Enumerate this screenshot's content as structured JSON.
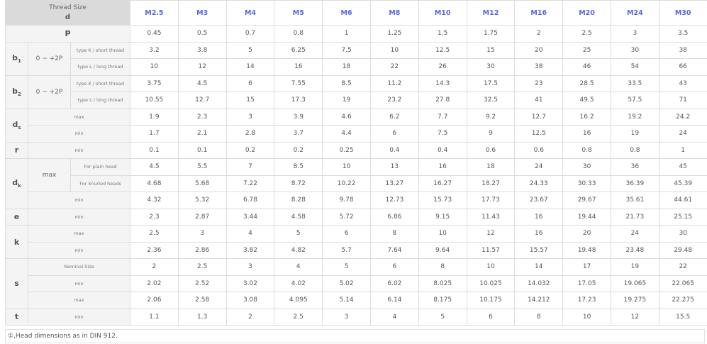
{
  "header": {
    "title": "Thread Size",
    "symbol": "d"
  },
  "sizes": [
    "M2.5",
    "M3",
    "M4",
    "M5",
    "M6",
    "M8",
    "M10",
    "M12",
    "M16",
    "M20",
    "M24",
    "M30"
  ],
  "groups": [
    {
      "symbol": "P",
      "sub": "",
      "full": true,
      "rows": [
        {
          "values": [
            "0.45",
            "0.5",
            "0.7",
            "0.8",
            "1",
            "1.25",
            "1.5",
            "1.75",
            "2",
            "2.5",
            "3",
            "3.5"
          ]
        }
      ]
    },
    {
      "symbol": "b",
      "sub": "1",
      "rows": [
        {
          "qual": "0 ~ +2P",
          "note": "type K / short thread",
          "values": [
            "3.2",
            "3.8",
            "5",
            "6.25",
            "7.5",
            "10",
            "12.5",
            "15",
            "20",
            "25",
            "30",
            "38"
          ]
        },
        {
          "qual": "0 ~ +2P",
          "note": "type L / long thread",
          "values": [
            "10",
            "12",
            "14",
            "16",
            "18",
            "22",
            "26",
            "30",
            "38",
            "46",
            "54",
            "66"
          ]
        }
      ]
    },
    {
      "symbol": "b",
      "sub": "2",
      "rows": [
        {
          "qual": "0 ~ +2P",
          "note": "type K / short thread",
          "values": [
            "3.75",
            "4.5",
            "6",
            "7.55",
            "8.5",
            "11.2",
            "14.3",
            "17.5",
            "23",
            "28.5",
            "33.5",
            "43"
          ]
        },
        {
          "qual": "0 ~ +2P",
          "note": "type L / long thread",
          "values": [
            "10.55",
            "12.7",
            "15",
            "17.3",
            "19",
            "23.2",
            "27.8",
            "32.5",
            "41",
            "49.5",
            "57.5",
            "71"
          ]
        }
      ]
    },
    {
      "symbol": "d",
      "sub": "s",
      "rows": [
        {
          "note": "max",
          "values": [
            "1.9",
            "2.3",
            "3",
            "3.9",
            "4.6",
            "6.2",
            "7.7",
            "9.2",
            "12.7",
            "16.2",
            "19.2",
            "24.2"
          ]
        },
        {
          "note": "min",
          "values": [
            "1.7",
            "2.1",
            "2.8",
            "3.7",
            "4.4",
            "6",
            "7.5",
            "9",
            "12.5",
            "16",
            "19",
            "24"
          ]
        }
      ]
    },
    {
      "symbol": "r",
      "sub": "",
      "rows": [
        {
          "note": "min",
          "values": [
            "0.1",
            "0.1",
            "0.2",
            "0.2",
            "0.25",
            "0.4",
            "0.4",
            "0.6",
            "0.6",
            "0.8",
            "0.8",
            "1"
          ]
        }
      ]
    },
    {
      "symbol": "d",
      "sub": "k",
      "rows": [
        {
          "qual": "max",
          "note": "For plain head",
          "values": [
            "4.5",
            "5.5",
            "7",
            "8.5",
            "10",
            "13",
            "16",
            "18",
            "24",
            "30",
            "36",
            "45"
          ]
        },
        {
          "qual": "max",
          "note": "For knurled heads",
          "values": [
            "4.68",
            "5.68",
            "7.22",
            "8.72",
            "10.22",
            "13.27",
            "16.27",
            "18.27",
            "24.33",
            "30.33",
            "36.39",
            "45.39"
          ]
        },
        {
          "note": "min",
          "values": [
            "4.32",
            "5.32",
            "6.78",
            "8.28",
            "9.78",
            "12.73",
            "15.73",
            "17.73",
            "23.67",
            "29.67",
            "35.61",
            "44.61"
          ]
        }
      ]
    },
    {
      "symbol": "e",
      "sub": "",
      "rows": [
        {
          "note": "min",
          "values": [
            "2.3",
            "2.87",
            "3.44",
            "4.58",
            "5.72",
            "6.86",
            "9.15",
            "11.43",
            "16",
            "19.44",
            "21.73",
            "25.15"
          ]
        }
      ]
    },
    {
      "symbol": "k",
      "sub": "",
      "rows": [
        {
          "note": "max",
          "values": [
            "2.5",
            "3",
            "4",
            "5",
            "6",
            "8",
            "10",
            "12",
            "16",
            "20",
            "24",
            "30"
          ]
        },
        {
          "note": "min",
          "values": [
            "2.36",
            "2.86",
            "3.82",
            "4.82",
            "5.7",
            "7.64",
            "9.64",
            "11.57",
            "15.57",
            "19.48",
            "23.48",
            "29.48"
          ]
        }
      ]
    },
    {
      "symbol": "s",
      "sub": "",
      "rows": [
        {
          "note": "Nominal Size",
          "values": [
            "2",
            "2.5",
            "3",
            "4",
            "5",
            "6",
            "8",
            "10",
            "14",
            "17",
            "19",
            "22"
          ]
        },
        {
          "note": "min",
          "values": [
            "2.02",
            "2.52",
            "3.02",
            "4.02",
            "5.02",
            "6.02",
            "8.025",
            "10.025",
            "14.032",
            "17.05",
            "19.065",
            "22.065"
          ]
        },
        {
          "note": "max",
          "values": [
            "2.06",
            "2.58",
            "3.08",
            "4.095",
            "5.14",
            "6.14",
            "8.175",
            "10.175",
            "14.212",
            "17.23",
            "19.275",
            "22.275"
          ]
        }
      ]
    },
    {
      "symbol": "t",
      "sub": "",
      "rows": [
        {
          "note": "min",
          "values": [
            "1.1",
            "1.3",
            "2",
            "2.5",
            "3",
            "4",
            "5",
            "6",
            "8",
            "10",
            "12",
            "15.5"
          ]
        }
      ]
    }
  ],
  "footnote": "①,Head dimensions as in DIN 912."
}
